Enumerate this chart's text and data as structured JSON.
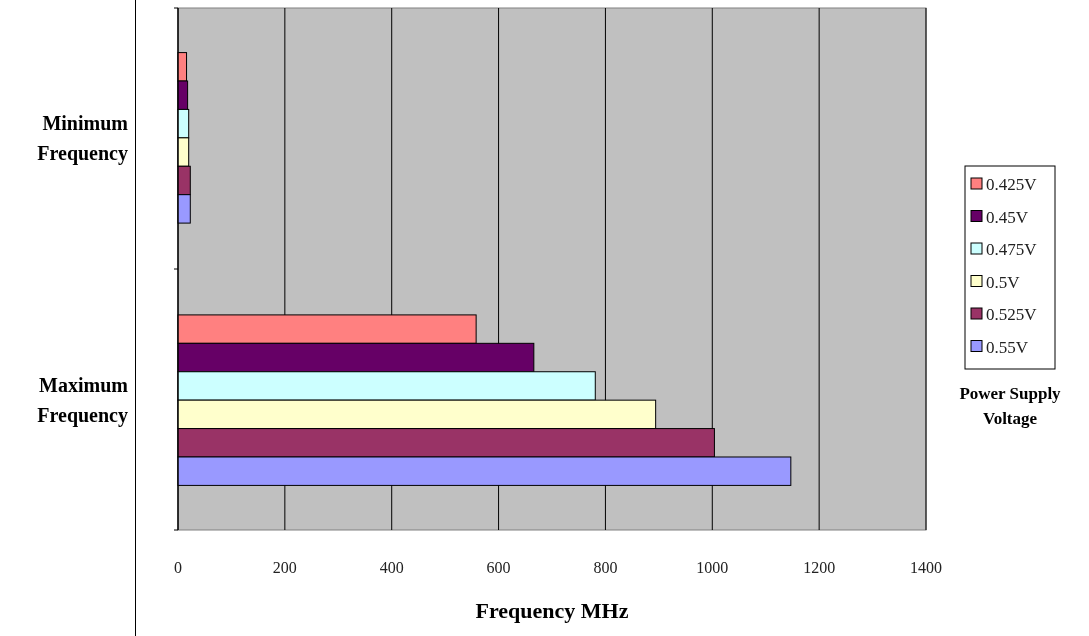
{
  "chart_data": {
    "type": "bar",
    "orientation": "horizontal",
    "categories": [
      "Minimum\nFrequency",
      "Maximum\nFrequency"
    ],
    "series": [
      {
        "name": "0.425V",
        "color": "#ff8080",
        "values": [
          16,
          558
        ]
      },
      {
        "name": "0.45V",
        "color": "#660066",
        "values": [
          18,
          666
        ]
      },
      {
        "name": "0.475V",
        "color": "#ccffff",
        "values": [
          20,
          781
        ]
      },
      {
        "name": "0.5V",
        "color": "#ffffcc",
        "values": [
          20,
          894
        ]
      },
      {
        "name": "0.525V",
        "color": "#993366",
        "values": [
          23,
          1004
        ]
      },
      {
        "name": "0.55V",
        "color": "#9999ff",
        "values": [
          23,
          1147
        ]
      }
    ],
    "xlim": [
      0,
      1400
    ],
    "xticks": [
      0,
      200,
      400,
      600,
      800,
      1000,
      1200,
      1400
    ],
    "xlabel": "Frequency MHz",
    "legend": "right",
    "legend_title": "Power Supply Voltage",
    "grid": "x"
  }
}
